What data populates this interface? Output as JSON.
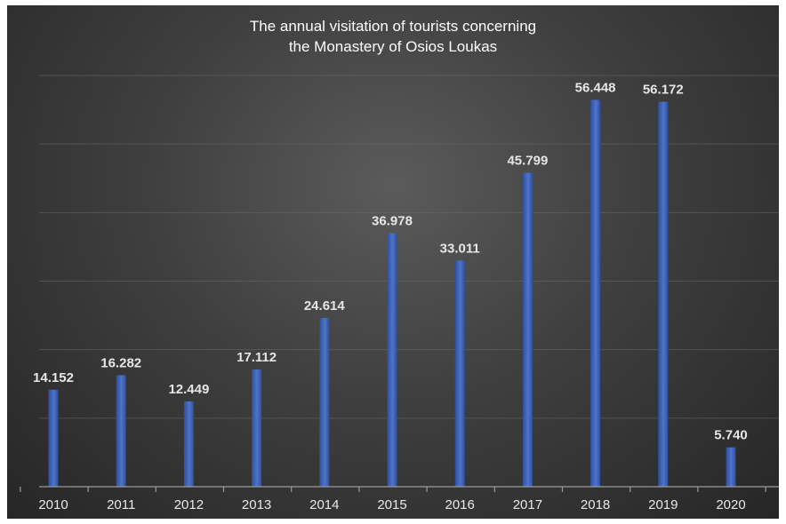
{
  "chart_data": {
    "type": "bar",
    "title_lines": [
      "The annual visitation of tourists concerning",
      "the Monastery of Osios Loukas"
    ],
    "categories": [
      "2010",
      "2011",
      "2012",
      "2013",
      "2014",
      "2015",
      "2016",
      "2017",
      "2018",
      "2019",
      "2020"
    ],
    "values": [
      14.152,
      16.282,
      12.449,
      17.112,
      24.614,
      36.978,
      33.011,
      45.799,
      56.448,
      56.172,
      5.74
    ],
    "value_labels": [
      "14.152",
      "16.282",
      "12.449",
      "17.112",
      "24.614",
      "36.978",
      "33.011",
      "45.799",
      "56.448",
      "56.172",
      "5.740"
    ],
    "ylim": [
      0,
      60
    ],
    "gridlines": [
      10,
      20,
      30,
      40,
      50,
      60
    ],
    "grid": true,
    "legend": false,
    "bar_color": "#4f74c8",
    "bar_color_dark": "#2e4f9e",
    "background_color": "#3a3a3a"
  }
}
